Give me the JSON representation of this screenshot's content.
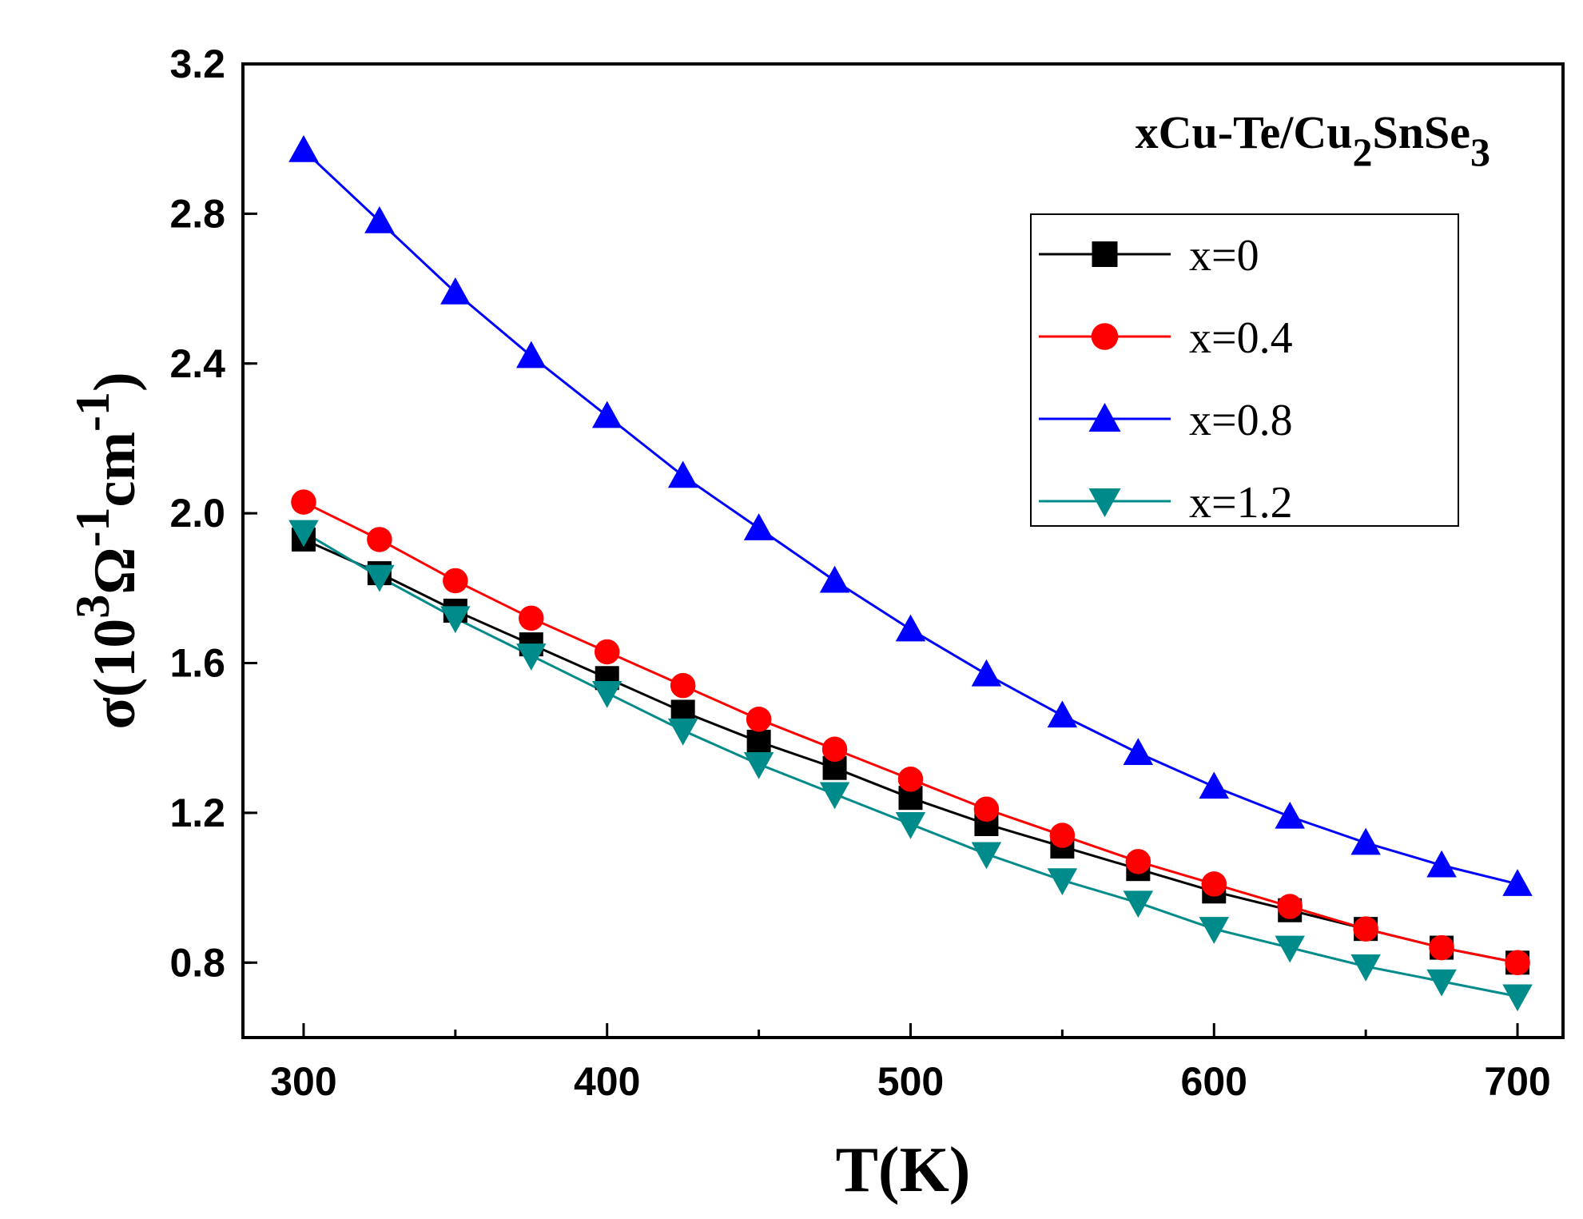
{
  "chart_data": {
    "type": "line",
    "title": "",
    "annotation": {
      "text_main_1": "xCu-Te/Cu",
      "sub_1": "2",
      "text_main_2": "SnSe",
      "sub_2": "3"
    },
    "xlabel": "T(K)",
    "ylabel": {
      "prefix": "σ(10",
      "sup1": "3",
      "mid": "Ω",
      "sup2": "-1",
      "mid2": "cm",
      "sup3": "-1",
      "suffix": ")"
    },
    "xlim": [
      280,
      715
    ],
    "ylim": [
      0.6,
      3.2
    ],
    "x_ticks": [
      300,
      400,
      500,
      600,
      700
    ],
    "x_tick_labels": [
      "300",
      "400",
      "500",
      "600",
      "700"
    ],
    "y_ticks": [
      0.8,
      1.2,
      1.6,
      2.0,
      2.4,
      2.8,
      3.2
    ],
    "y_tick_labels": [
      "0.8",
      "1.2",
      "1.6",
      "2.0",
      "2.4",
      "2.8",
      "3.2"
    ],
    "x": [
      300,
      325,
      350,
      375,
      400,
      425,
      450,
      475,
      500,
      525,
      550,
      575,
      600,
      625,
      650,
      675,
      700
    ],
    "legend_position": "top-right",
    "series": [
      {
        "name": "x=0",
        "color": "#000000",
        "marker": "square",
        "values": [
          1.93,
          1.84,
          1.74,
          1.65,
          1.56,
          1.47,
          1.39,
          1.32,
          1.24,
          1.17,
          1.11,
          1.05,
          0.99,
          0.94,
          0.89,
          0.84,
          0.8
        ]
      },
      {
        "name": "x=0.4",
        "color": "#ff0000",
        "marker": "circle",
        "values": [
          2.03,
          1.93,
          1.82,
          1.72,
          1.63,
          1.54,
          1.45,
          1.37,
          1.29,
          1.21,
          1.14,
          1.07,
          1.01,
          0.95,
          0.89,
          0.84,
          0.8
        ]
      },
      {
        "name": "x=0.8",
        "color": "#0000ff",
        "marker": "triangle-up",
        "values": [
          2.97,
          2.78,
          2.59,
          2.42,
          2.26,
          2.1,
          1.96,
          1.82,
          1.69,
          1.57,
          1.46,
          1.36,
          1.27,
          1.19,
          1.12,
          1.06,
          1.01
        ]
      },
      {
        "name": "x=1.2",
        "color": "#008b8b",
        "marker": "triangle-down",
        "values": [
          1.95,
          1.83,
          1.72,
          1.62,
          1.52,
          1.42,
          1.33,
          1.25,
          1.17,
          1.09,
          1.02,
          0.96,
          0.89,
          0.84,
          0.79,
          0.75,
          0.71
        ]
      }
    ]
  }
}
